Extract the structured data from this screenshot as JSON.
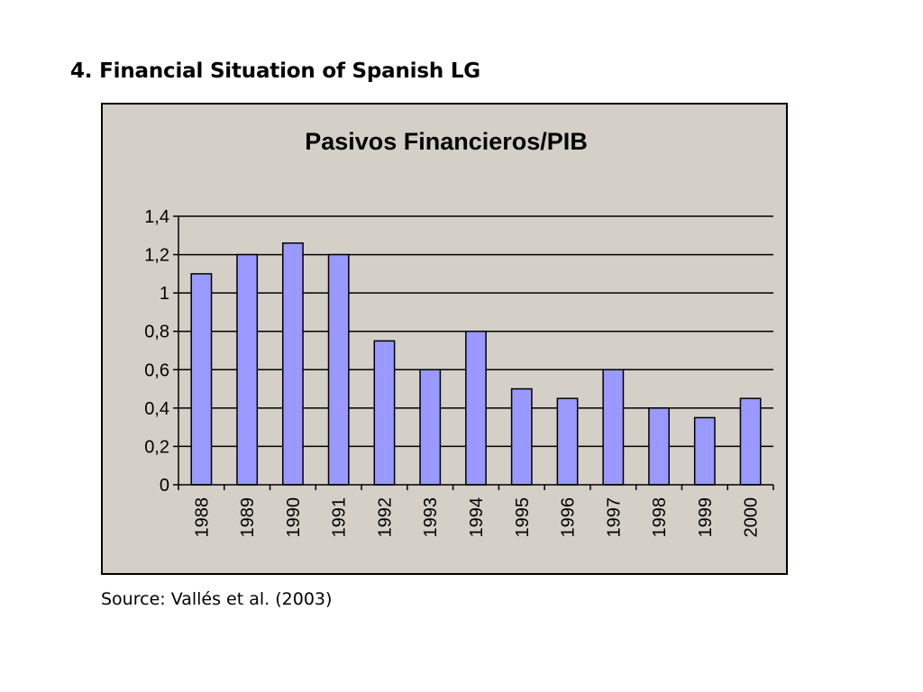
{
  "slide": {
    "title": "4. Financial Situation of Spanish LG",
    "source": "Source: Vallés et al. (2003)"
  },
  "colors": {
    "plot_background": "#d4d0c8",
    "bar_fill": "#9999ff",
    "bar_stroke": "#000000",
    "gridline": "#000000"
  },
  "chart_data": {
    "type": "bar",
    "title": "Pasivos Financieros/PIB",
    "xlabel": "",
    "ylabel": "",
    "categories": [
      "1988",
      "1989",
      "1990",
      "1991",
      "1992",
      "1993",
      "1994",
      "1995",
      "1996",
      "1997",
      "1998",
      "1999",
      "2000"
    ],
    "values": [
      1.1,
      1.2,
      1.26,
      1.2,
      0.75,
      0.6,
      0.8,
      0.5,
      0.45,
      0.6,
      0.4,
      0.35,
      0.45
    ],
    "ylim": [
      0,
      1.4
    ],
    "yticks": [
      0,
      0.2,
      0.4,
      0.6,
      0.8,
      1,
      1.2,
      1.4
    ],
    "ytick_labels": [
      "0",
      "0,2",
      "0,4",
      "0,6",
      "0,8",
      "1",
      "1,2",
      "1,4"
    ],
    "grid": true,
    "legend": "none"
  }
}
